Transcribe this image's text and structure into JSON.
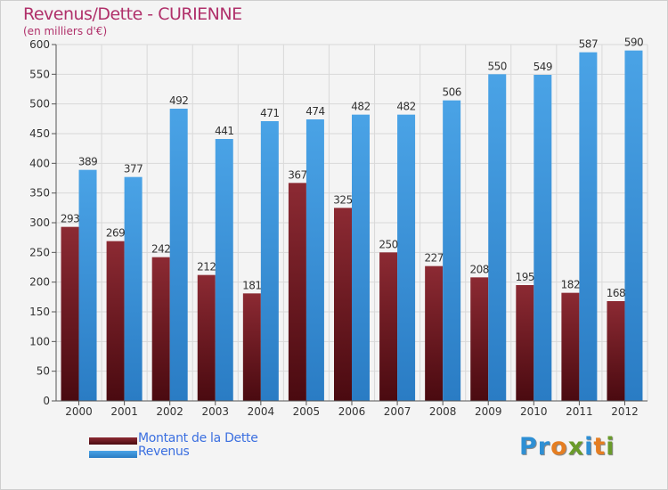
{
  "title": "Revenus/Dette - CURIENNE",
  "subtitle": "(en milliers d'€)",
  "logo_text": "Proxiti",
  "logo_letters": [
    "P",
    "r",
    "o",
    "x",
    "i",
    "t",
    "i"
  ],
  "colors": {
    "debt": "#7a1f28",
    "revenue": "#3f97d8",
    "title": "#b0306a",
    "legend_text": "#3b6fe0",
    "grid": "#d9d9d9",
    "logo": [
      "#2e8fd4",
      "#2e8fd4",
      "#e57e22",
      "#6a9b2a",
      "#2e8fd4",
      "#e57e22",
      "#6a9b2a"
    ]
  },
  "legend": [
    {
      "key": "debt",
      "label": "Montant de la Dette"
    },
    {
      "key": "revenue",
      "label": "Revenus"
    }
  ],
  "chart_data": {
    "type": "bar",
    "title": "Revenus/Dette - CURIENNE",
    "ylabel": "(en milliers d'€)",
    "xlabel": "",
    "ylim": [
      0,
      600
    ],
    "yticks": [
      0,
      50,
      100,
      150,
      200,
      250,
      300,
      350,
      400,
      450,
      500,
      550,
      600
    ],
    "grid": true,
    "legend_position": "bottom-left",
    "categories": [
      "2000",
      "2001",
      "2002",
      "2003",
      "2004",
      "2005",
      "2006",
      "2007",
      "2008",
      "2009",
      "2010",
      "2011",
      "2012"
    ],
    "series": [
      {
        "name": "Montant de la Dette",
        "key": "debt",
        "values": [
          293,
          269,
          242,
          212,
          181,
          367,
          325,
          250,
          227,
          208,
          195,
          182,
          168
        ]
      },
      {
        "name": "Revenus",
        "key": "revenue",
        "values": [
          389,
          377,
          492,
          441,
          471,
          474,
          482,
          482,
          506,
          550,
          549,
          587,
          590
        ]
      }
    ]
  }
}
